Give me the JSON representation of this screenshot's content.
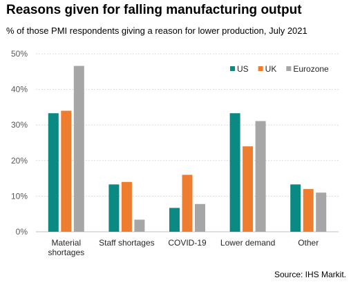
{
  "title": "Reasons given for falling manufacturing output",
  "subtitle": "% of those PMI respondents giving a reason for lower production, July 2021",
  "source": "Source: IHS Markit.",
  "colors": {
    "US": "#0a8a82",
    "UK": "#ef7d2f",
    "Eurozone": "#a6a6a6",
    "grid": "#d9d9d9",
    "axis": "#bfbfbf",
    "tick": "#595959"
  },
  "chart_data": {
    "type": "bar",
    "title": "Reasons given for falling manufacturing output",
    "subtitle": "% of those PMI respondents giving a reason for lower production, July 2021",
    "xlabel": "",
    "ylabel": "",
    "categories": [
      [
        "Material",
        "shortages"
      ],
      [
        "Staff shortages"
      ],
      [
        "COVID-19"
      ],
      [
        "Lower demand"
      ],
      [
        "Other"
      ]
    ],
    "series": [
      {
        "name": "US",
        "color": "#0a8a82",
        "values": [
          33.3,
          13.3,
          6.7,
          33.3,
          13.3
        ]
      },
      {
        "name": "UK",
        "color": "#ef7d2f",
        "values": [
          34.0,
          14.0,
          16.0,
          24.0,
          12.0
        ]
      },
      {
        "name": "Eurozone",
        "color": "#a6a6a6",
        "values": [
          46.6,
          3.4,
          7.8,
          31.1,
          11.0
        ]
      }
    ],
    "ylim": [
      0,
      50
    ],
    "yticks": [
      0,
      10,
      20,
      30,
      40,
      50
    ],
    "ytick_labels": [
      "0%",
      "10%",
      "20%",
      "30%",
      "40%",
      "50%"
    ],
    "grid": true,
    "legend_position": "top-right"
  }
}
